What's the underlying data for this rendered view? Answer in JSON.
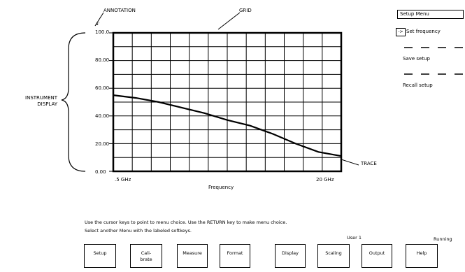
{
  "annotations": {
    "annotation": "ANNOTATION",
    "annotation_marker": "a'",
    "grid": "GRID",
    "instrument_display": "INSTRUMENT\nDISPLAY",
    "trace": "TRACE"
  },
  "chart_data": {
    "type": "line",
    "xlabel": "Frequency",
    "x_tick_labels": [
      ".5 GHz",
      "20 GHz"
    ],
    "ylabel": "",
    "ylim": [
      0,
      100
    ],
    "y_tick_labels": [
      "100.0",
      "80.00",
      "60.00",
      "40.00",
      "20.00",
      "0.00"
    ],
    "grid": true,
    "series": [
      {
        "x_fraction": [
          0,
          0.1,
          0.2,
          0.3,
          0.4,
          0.5,
          0.6,
          0.7,
          0.8,
          0.9,
          1.0
        ],
        "values": [
          55,
          53,
          50,
          46,
          42,
          37,
          33,
          27,
          20,
          14,
          11
        ]
      }
    ]
  },
  "menu": {
    "title": "Setup  Menu",
    "items": [
      {
        "label": "Set  frequency",
        "selected": true,
        "marker": "->"
      },
      {
        "label": "Save  setup"
      },
      {
        "label": "Recall  setup"
      }
    ]
  },
  "instructions": {
    "line1": "Use  the  cursor  keys  to  point  to  menu  choice.  Use  the  RETURN  key  to  make  menu  choice.",
    "line2": "Select  another  Menu  with  the  labeled  softkeys."
  },
  "status": {
    "user": "User  1",
    "running": "Running"
  },
  "softkeys": [
    "Setup",
    "Cali-\nbrate",
    "Measure",
    "Format",
    "Display",
    "Scaling",
    "Output",
    "Help"
  ]
}
